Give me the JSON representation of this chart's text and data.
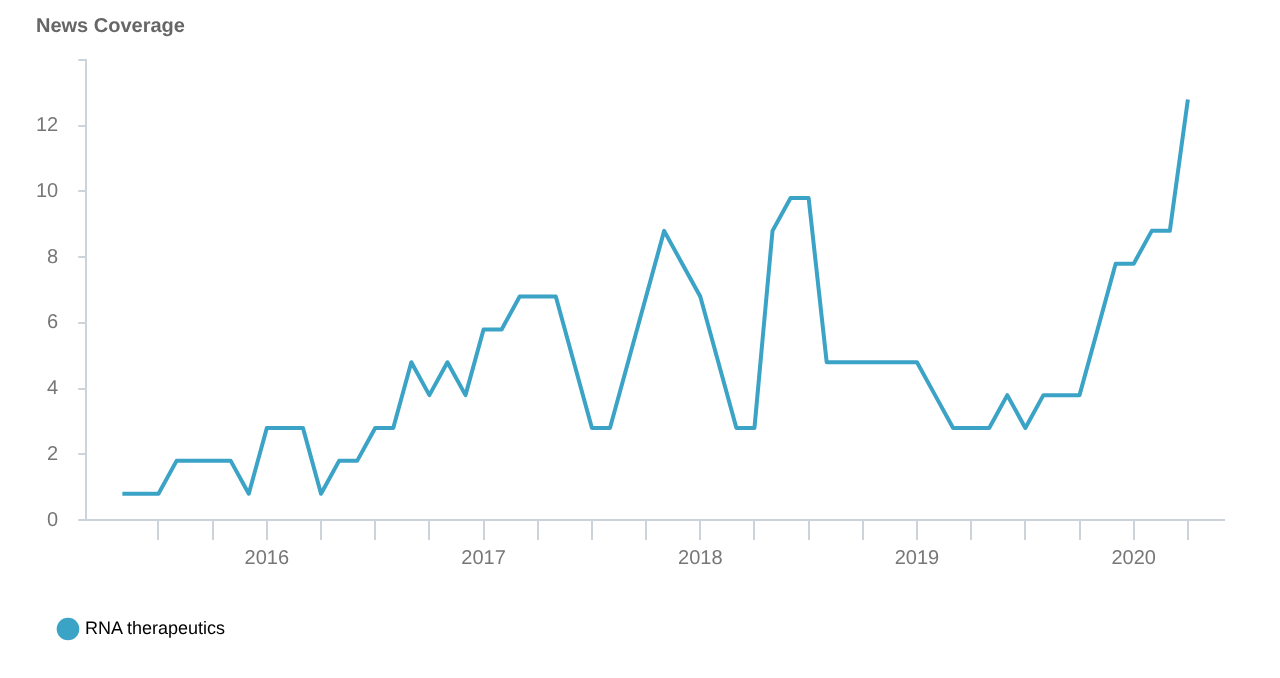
{
  "chart_data": {
    "type": "line",
    "ylabel": "News Coverage",
    "x": [
      "2015-05",
      "2015-06",
      "2015-07",
      "2015-08",
      "2015-09",
      "2015-10",
      "2015-11",
      "2015-12",
      "2016-01",
      "2016-02",
      "2016-03",
      "2016-04",
      "2016-05",
      "2016-06",
      "2016-07",
      "2016-08",
      "2016-09",
      "2016-10",
      "2016-11",
      "2016-12",
      "2017-01",
      "2017-02",
      "2017-03",
      "2017-04",
      "2017-05",
      "2017-06",
      "2017-07",
      "2017-08",
      "2017-09",
      "2017-10",
      "2017-11",
      "2017-12",
      "2018-01",
      "2018-02",
      "2018-03",
      "2018-04",
      "2018-05",
      "2018-06",
      "2018-07",
      "2018-08",
      "2018-09",
      "2018-10",
      "2018-11",
      "2018-12",
      "2019-01",
      "2019-02",
      "2019-03",
      "2019-04",
      "2019-05",
      "2019-06",
      "2019-07",
      "2019-08",
      "2019-09",
      "2019-10",
      "2019-11",
      "2019-12",
      "2020-01",
      "2020-02",
      "2020-03",
      "2020-04"
    ],
    "series": [
      {
        "name": "RNA therapeutics",
        "color": "#3ba3c6",
        "values": [
          0.8,
          0.8,
          0.8,
          1.8,
          1.8,
          1.8,
          1.8,
          0.8,
          2.8,
          2.8,
          2.8,
          0.8,
          1.8,
          1.8,
          2.8,
          2.8,
          4.8,
          3.8,
          4.8,
          3.8,
          5.8,
          5.8,
          6.8,
          6.8,
          6.8,
          4.8,
          2.8,
          2.8,
          4.8,
          6.8,
          8.8,
          7.8,
          6.8,
          4.8,
          2.8,
          2.8,
          8.8,
          9.8,
          9.8,
          4.8,
          4.8,
          4.8,
          4.8,
          4.8,
          4.8,
          3.8,
          2.8,
          2.8,
          2.8,
          3.8,
          2.8,
          3.8,
          3.8,
          3.8,
          5.8,
          7.8,
          7.8,
          8.8,
          8.8,
          12.8
        ]
      }
    ],
    "xlim": [
      "2015-03",
      "2020-06"
    ],
    "xticks": [
      {
        "value": "2015-07",
        "label": null
      },
      {
        "value": "2015-10",
        "label": null
      },
      {
        "value": "2016-01",
        "label": "2016"
      },
      {
        "value": "2016-04",
        "label": null
      },
      {
        "value": "2016-07",
        "label": null
      },
      {
        "value": "2016-10",
        "label": null
      },
      {
        "value": "2017-01",
        "label": "2017"
      },
      {
        "value": "2017-04",
        "label": null
      },
      {
        "value": "2017-07",
        "label": null
      },
      {
        "value": "2017-10",
        "label": null
      },
      {
        "value": "2018-01",
        "label": "2018"
      },
      {
        "value": "2018-04",
        "label": null
      },
      {
        "value": "2018-07",
        "label": null
      },
      {
        "value": "2018-10",
        "label": null
      },
      {
        "value": "2019-01",
        "label": "2019"
      },
      {
        "value": "2019-04",
        "label": null
      },
      {
        "value": "2019-07",
        "label": null
      },
      {
        "value": "2019-10",
        "label": null
      },
      {
        "value": "2020-01",
        "label": "2020"
      },
      {
        "value": "2020-04",
        "label": null
      }
    ],
    "ylim": [
      0,
      14
    ],
    "yticks": [
      0,
      2,
      4,
      6,
      8,
      10,
      12,
      {
        "value": 14,
        "label": null
      }
    ],
    "grid": false,
    "legend": "bottom left",
    "marker": "none",
    "line_style": "solid"
  }
}
